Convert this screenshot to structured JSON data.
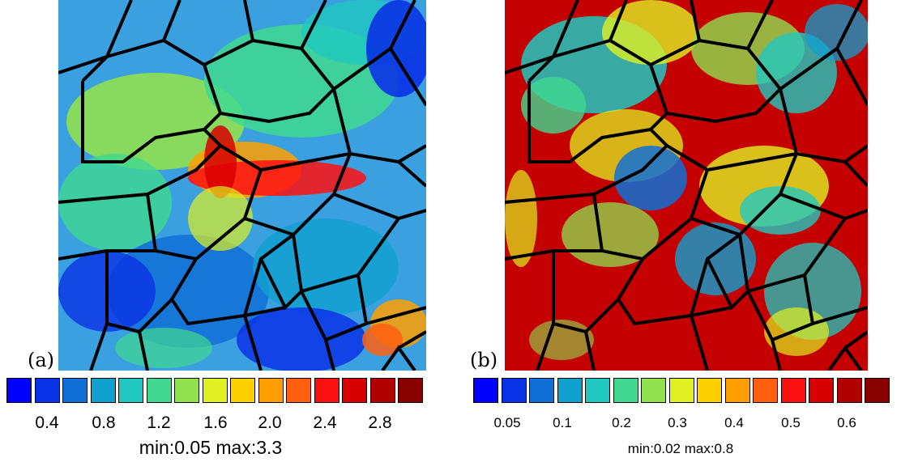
{
  "panel_a": {
    "label": "(a)",
    "min": 0.05,
    "max": 3.3,
    "minmax_text": "min:0.05 max:3.3",
    "ticks": [
      "0.4",
      "0.8",
      "1.2",
      "1.6",
      "2.0",
      "2.4",
      "2.8"
    ]
  },
  "panel_b": {
    "label": "(b)",
    "min": 0.02,
    "max": 0.8,
    "minmax_text": "min:0.02 max:0.8",
    "ticks": [
      "0.05",
      "0.1",
      "0.2",
      "0.3",
      "0.4",
      "0.5",
      "0.6"
    ]
  },
  "colormap": [
    "#0000ff",
    "#0a32e6",
    "#1070d6",
    "#10a0d0",
    "#20c8c0",
    "#40d890",
    "#90e050",
    "#e0f020",
    "#ffd000",
    "#ffa000",
    "#ff6010",
    "#ff1010",
    "#d80000",
    "#b00000",
    "#880000"
  ],
  "grain_boundary_color": "#000000"
}
